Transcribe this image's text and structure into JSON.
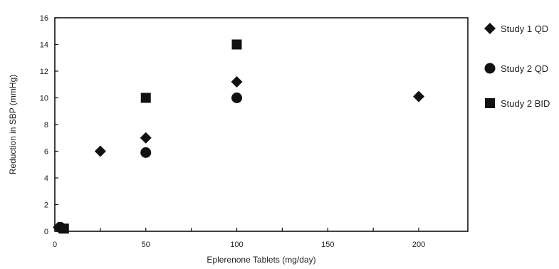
{
  "chart_data": {
    "type": "scatter",
    "title": "",
    "xlabel": "Eplerenone Tablets (mg/day)",
    "ylabel": "Reduction in SBP (mmHg)",
    "xlim": [
      0,
      227
    ],
    "ylim": [
      0,
      16
    ],
    "x_ticks": [
      0,
      50,
      100,
      150,
      200
    ],
    "y_ticks": [
      0,
      2,
      4,
      6,
      8,
      10,
      12,
      14,
      16
    ],
    "grid": false,
    "legend_placement": "right",
    "series": [
      {
        "name": "Study 1 QD",
        "marker": "diamond",
        "color": "#111111",
        "points": [
          [
            2,
            0.3
          ],
          [
            25,
            6
          ],
          [
            50,
            7
          ],
          [
            100,
            11.2
          ],
          [
            200,
            10.1
          ]
        ]
      },
      {
        "name": "Study 2 QD",
        "marker": "circle",
        "color": "#111111",
        "points": [
          [
            3,
            0.3
          ],
          [
            50,
            5.9
          ],
          [
            100,
            10
          ]
        ]
      },
      {
        "name": "Study 2 BID",
        "marker": "square",
        "color": "#111111",
        "points": [
          [
            5,
            0.2
          ],
          [
            50,
            10
          ],
          [
            100,
            14
          ]
        ]
      }
    ]
  }
}
